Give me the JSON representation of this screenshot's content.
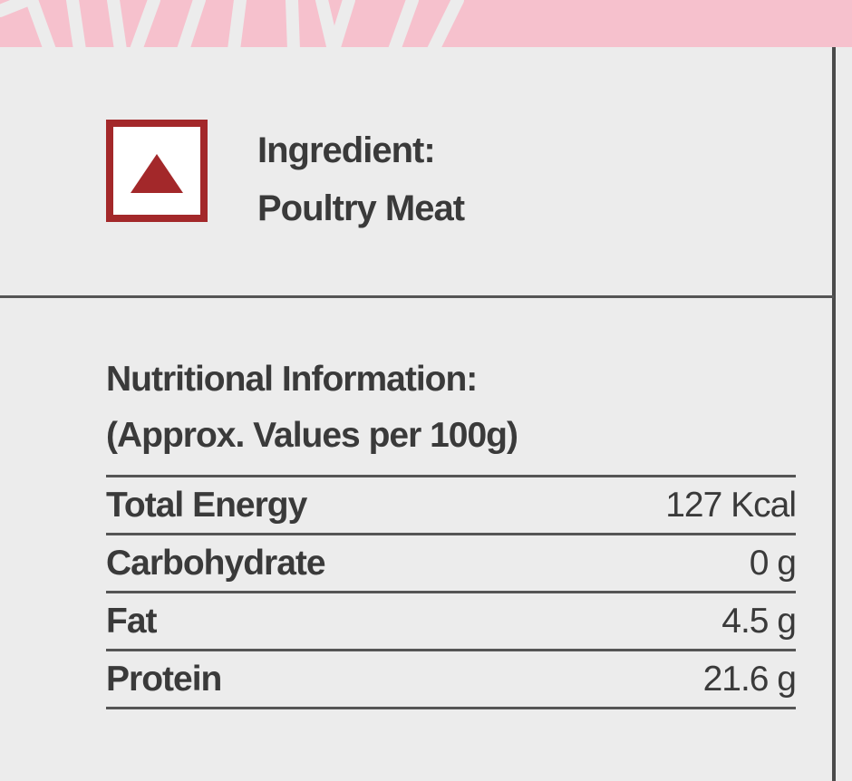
{
  "ingredient": {
    "label": "Ingredient:",
    "value": "Poultry Meat",
    "icon": "red-triangle-icon",
    "icon_color": "#a3282a"
  },
  "nutrition": {
    "title": "Nutritional Information:",
    "subtitle": "(Approx. Values per 100g)",
    "rows": [
      {
        "name": "Total Energy",
        "value": "127 Kcal"
      },
      {
        "name": "Carbohydrate",
        "value": "0 g"
      },
      {
        "name": "Fat",
        "value": "4.5 g"
      },
      {
        "name": "Protein",
        "value": "21.6 g"
      }
    ]
  },
  "colors": {
    "banner": "#f6c1cd",
    "background": "#ececec"
  }
}
